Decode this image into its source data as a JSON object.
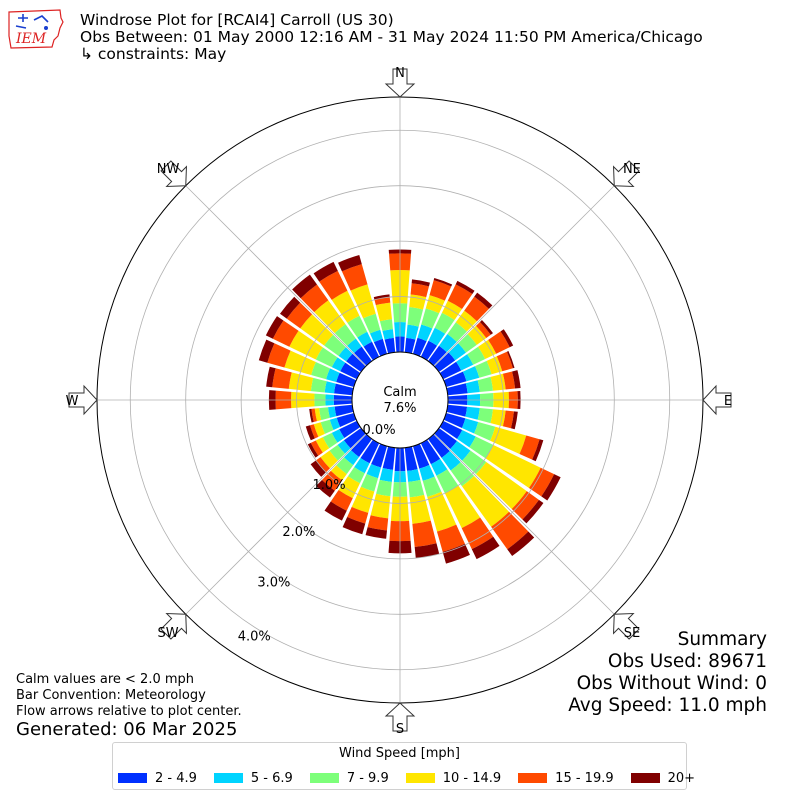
{
  "header": {
    "logo_text": "IEM",
    "title": "Windrose Plot for [RCAI4] Carroll (US 30)",
    "obs_between": "Obs Between: 01 May 2000 12:16 AM - 31 May 2024 11:50 PM America/Chicago",
    "constraints": "↳ constraints: May"
  },
  "summary": {
    "title": "Summary",
    "obs_used": "Obs Used: 89671",
    "obs_without_wind": "Obs Without Wind: 0",
    "avg_speed": "Avg Speed: 11.0 mph"
  },
  "notes": {
    "calm_note": "Calm values are < 2.0 mph",
    "bar_convention": "Bar Convention: Meteorology",
    "flow_arrows": "Flow arrows relative to plot center.",
    "generated": "Generated: 06 Mar 2025"
  },
  "legend": {
    "title": "Wind Speed [mph]",
    "items": [
      {
        "label": "2 - 4.9",
        "color": "#0030ff"
      },
      {
        "label": "5 - 6.9",
        "color": "#00d4ff"
      },
      {
        "label": "7 - 9.9",
        "color": "#7dff7a"
      },
      {
        "label": "10 - 14.9",
        "color": "#ffe600"
      },
      {
        "label": "15 - 19.9",
        "color": "#ff4a00"
      },
      {
        "label": "20+",
        "color": "#800000"
      }
    ]
  },
  "chart_data": {
    "type": "windrose",
    "bar_convention": "Meteorology",
    "calm": {
      "label": "Calm",
      "value_pct": 7.6,
      "value_text": "7.6%"
    },
    "radial_ticks": [
      0,
      1,
      2,
      3,
      4
    ],
    "radial_tick_labels": [
      "0.0%",
      "1.0%",
      "2.0%",
      "3.0%",
      "4.0%"
    ],
    "rlim": [
      0,
      4.6
    ],
    "compass_labels": [
      "N",
      "NE",
      "E",
      "SE",
      "S",
      "SW",
      "W",
      "NW"
    ],
    "directions": [
      "N",
      "N10",
      "N20",
      "N30",
      "N40",
      "NE",
      "E60",
      "E70",
      "E80",
      "E",
      "E100",
      "E110",
      "E120",
      "E130",
      "SE",
      "S150",
      "S160",
      "S170",
      "S",
      "S190",
      "S200",
      "S210",
      "S220",
      "SW",
      "W240",
      "W250",
      "W260",
      "W",
      "W280",
      "W290",
      "W300",
      "W310",
      "NW",
      "N330",
      "N340",
      "N350"
    ],
    "speed_bins": [
      "2 - 4.9",
      "5 - 6.9",
      "7 - 9.9",
      "10 - 14.9",
      "15 - 19.9",
      "20+"
    ],
    "cumulative_pct": [
      [
        0.28,
        0.54,
        0.88,
        1.48,
        1.78,
        1.85
      ],
      [
        0.26,
        0.5,
        0.82,
        1.05,
        1.25,
        1.32
      ],
      [
        0.3,
        0.55,
        0.85,
        1.1,
        1.38,
        1.42
      ],
      [
        0.32,
        0.58,
        0.88,
        1.12,
        1.45,
        1.52
      ],
      [
        0.34,
        0.6,
        0.86,
        1.12,
        1.43,
        1.52
      ],
      [
        0.36,
        0.6,
        0.84,
        1.05,
        1.15,
        1.2
      ],
      [
        0.36,
        0.6,
        0.84,
        1.06,
        1.33,
        1.4
      ],
      [
        0.38,
        0.62,
        0.85,
        1.05,
        1.25,
        1.28
      ],
      [
        0.36,
        0.58,
        0.82,
        1.05,
        1.22,
        1.32
      ],
      [
        0.35,
        0.58,
        0.82,
        1.1,
        1.26,
        1.31
      ],
      [
        0.35,
        0.58,
        0.82,
        1.05,
        1.2,
        1.27
      ],
      [
        0.36,
        0.6,
        0.92,
        1.5,
        1.75,
        1.82
      ],
      [
        0.38,
        0.65,
        1.0,
        1.95,
        2.22,
        2.35
      ],
      [
        0.4,
        0.7,
        1.05,
        1.95,
        2.22,
        2.32
      ],
      [
        0.42,
        0.7,
        1.05,
        1.95,
        2.45,
        2.6
      ],
      [
        0.42,
        0.65,
        1.0,
        1.7,
        2.12,
        2.32
      ],
      [
        0.42,
        0.65,
        0.95,
        1.6,
        1.98,
        2.2
      ],
      [
        0.42,
        0.62,
        0.9,
        1.38,
        1.8,
        2.0
      ],
      [
        0.42,
        0.62,
        0.88,
        1.32,
        1.68,
        1.9
      ],
      [
        0.4,
        0.62,
        0.88,
        1.28,
        1.5,
        1.65
      ],
      [
        0.4,
        0.6,
        0.85,
        1.25,
        1.45,
        1.65
      ],
      [
        0.4,
        0.6,
        0.8,
        1.1,
        1.35,
        1.55
      ],
      [
        0.4,
        0.58,
        0.78,
        0.92,
        1.15,
        1.3
      ],
      [
        0.38,
        0.52,
        0.7,
        0.9,
        1.0,
        1.12
      ],
      [
        0.35,
        0.5,
        0.68,
        0.82,
        0.92,
        0.98
      ],
      [
        0.32,
        0.45,
        0.62,
        0.75,
        0.82,
        0.9
      ],
      [
        0.32,
        0.44,
        0.6,
        0.68,
        0.74,
        0.78
      ],
      [
        0.33,
        0.48,
        0.68,
        1.1,
        1.38,
        1.5
      ],
      [
        0.33,
        0.5,
        0.75,
        1.15,
        1.45,
        1.56
      ],
      [
        0.33,
        0.52,
        0.8,
        1.3,
        1.62,
        1.78
      ],
      [
        0.33,
        0.5,
        0.82,
        1.35,
        1.68,
        1.82
      ],
      [
        0.33,
        0.5,
        0.82,
        1.35,
        1.65,
        1.8
      ],
      [
        0.32,
        0.5,
        0.82,
        1.35,
        1.7,
        1.92
      ],
      [
        0.3,
        0.5,
        0.82,
        1.32,
        1.72,
        1.9
      ],
      [
        0.28,
        0.45,
        0.75,
        1.3,
        1.68,
        1.85
      ],
      [
        0.26,
        0.42,
        0.6,
        0.9,
        1.0,
        1.05
      ]
    ]
  }
}
